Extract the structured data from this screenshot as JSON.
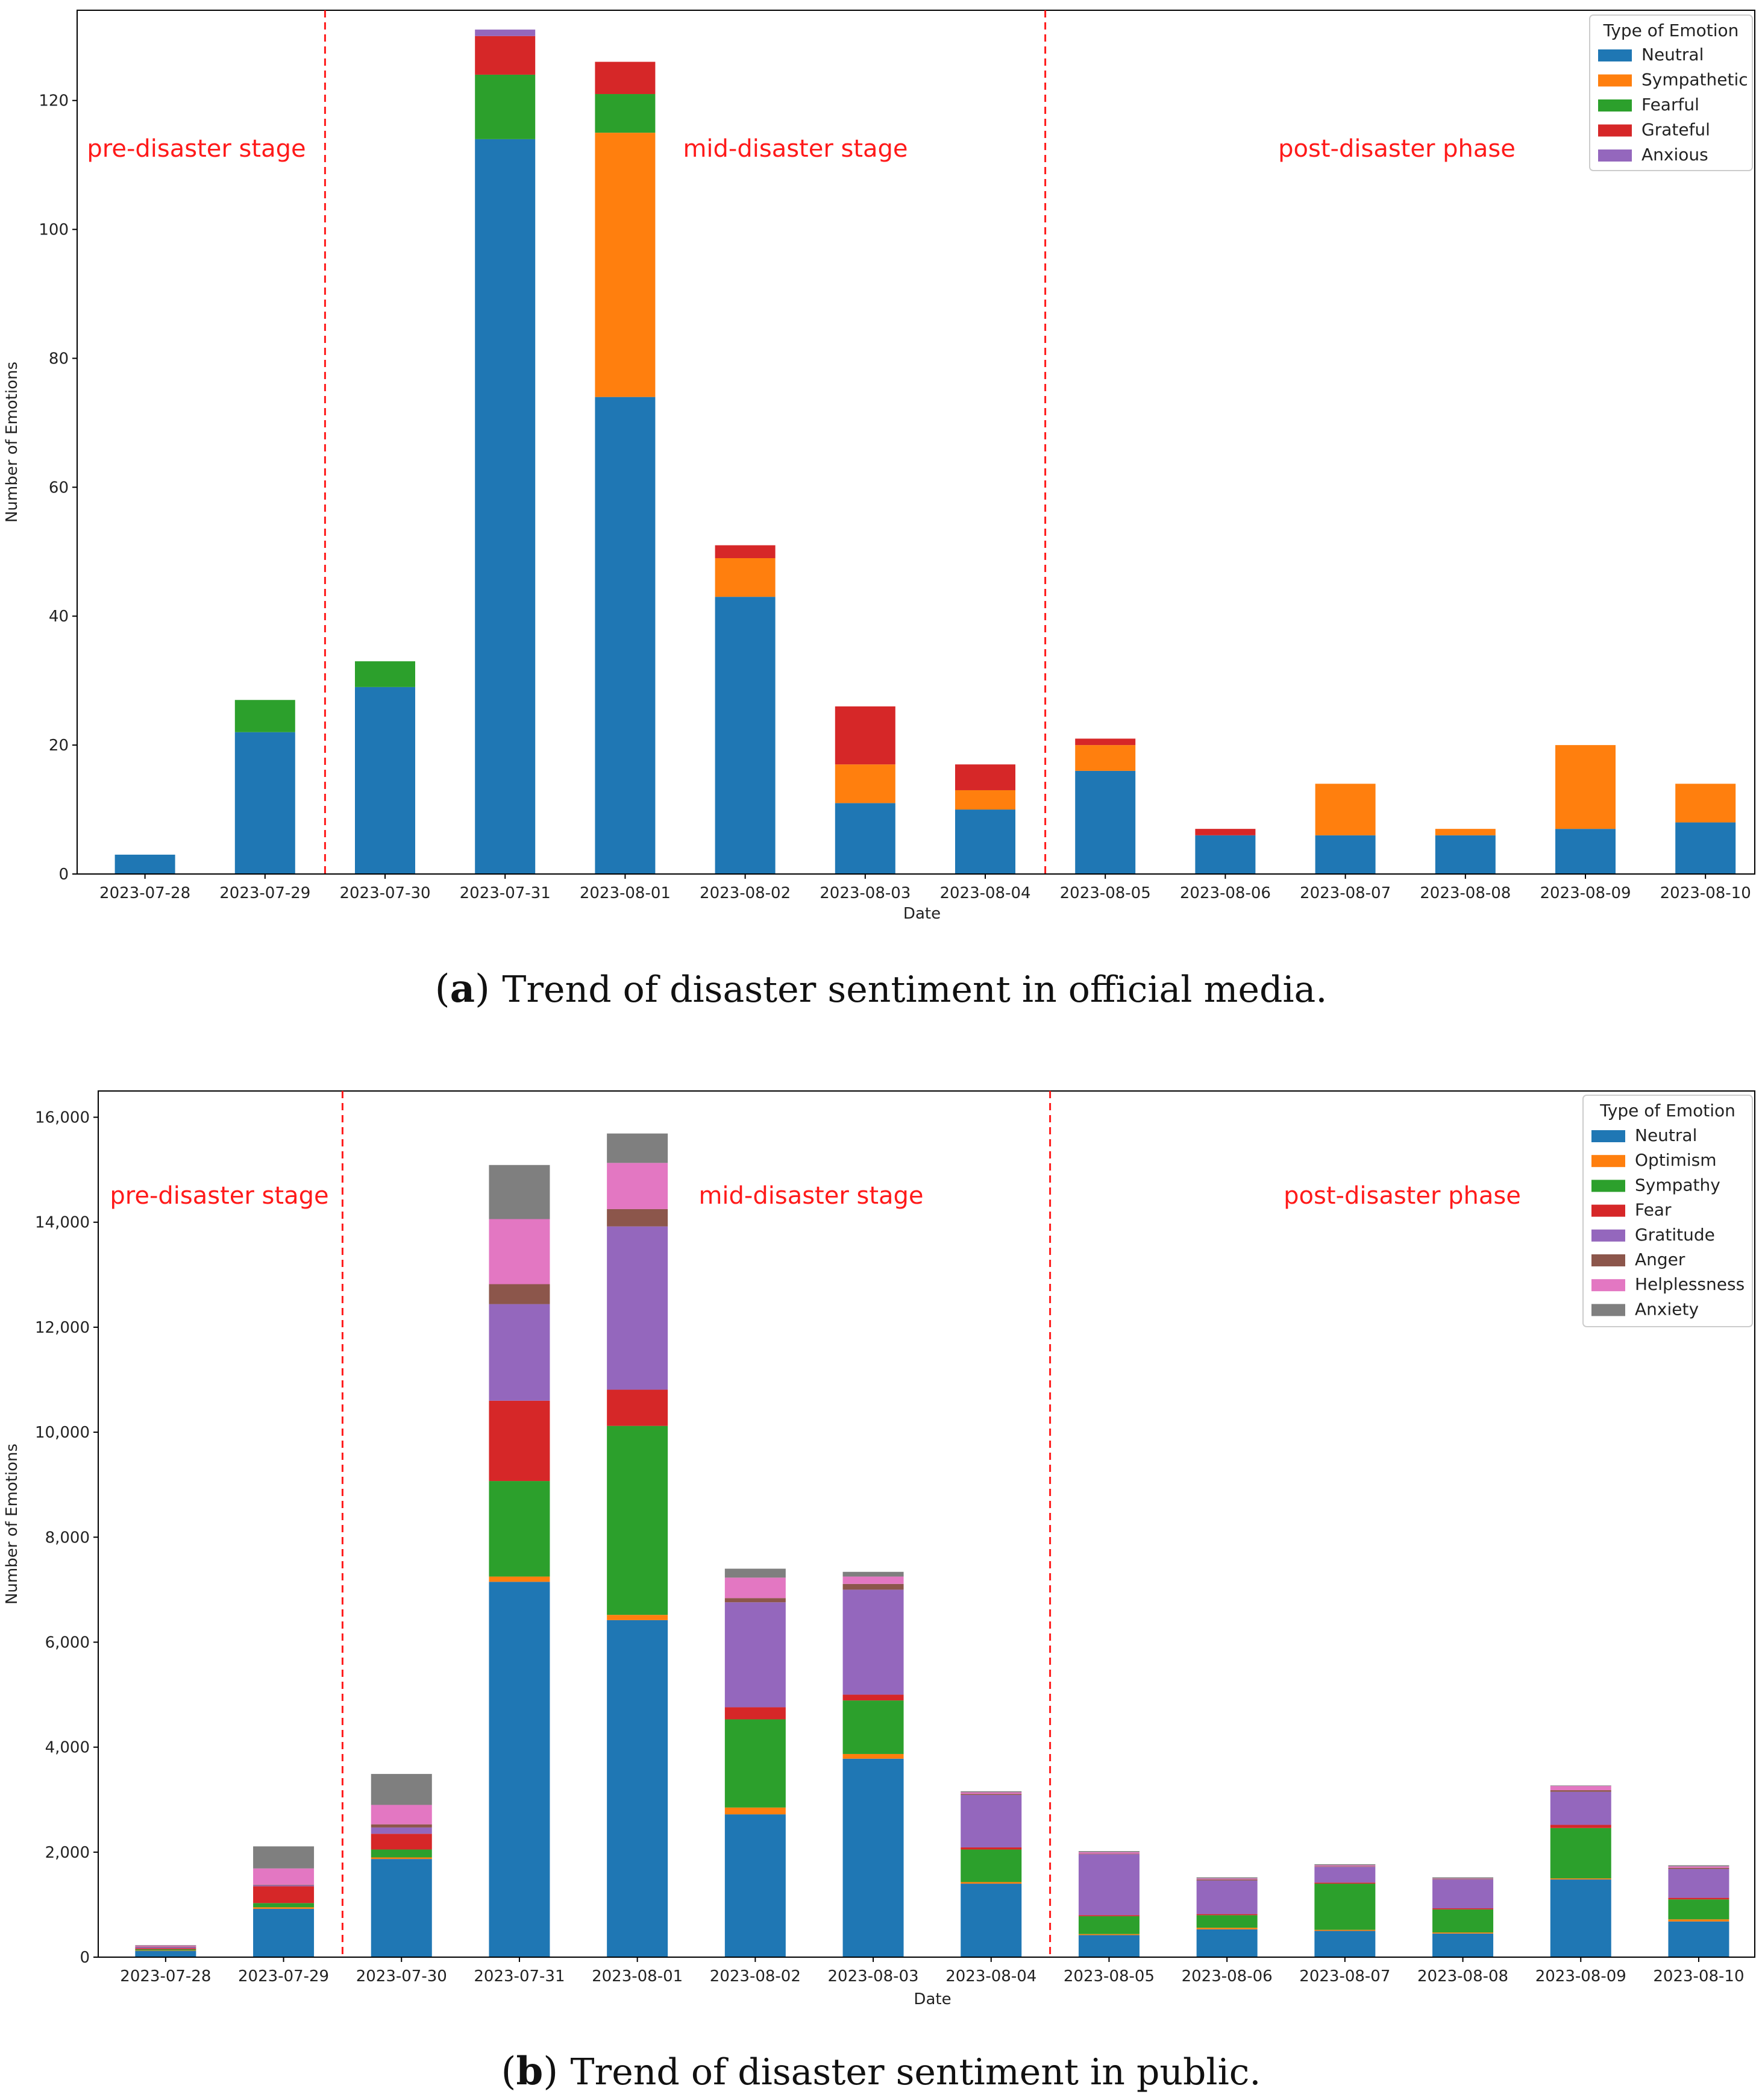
{
  "chart_data": [
    {
      "type": "bar",
      "stacked": true,
      "caption_tag": "a",
      "caption_text": "Trend of disaster sentiment in official media.",
      "xlabel": "Date",
      "ylabel": "Number of Emotions",
      "ylim": [
        0,
        134
      ],
      "yticks": [
        0,
        20,
        40,
        60,
        80,
        100,
        120
      ],
      "ytick_labels": [
        "0",
        "20",
        "40",
        "60",
        "80",
        "100",
        "120"
      ],
      "legend_title": "Type of Emotion",
      "legend_position": "top-right",
      "categories": [
        "2023-07-28",
        "2023-07-29",
        "2023-07-30",
        "2023-07-31",
        "2023-08-01",
        "2023-08-02",
        "2023-08-03",
        "2023-08-04",
        "2023-08-05",
        "2023-08-06",
        "2023-08-07",
        "2023-08-08",
        "2023-08-09",
        "2023-08-10"
      ],
      "series": [
        {
          "name": "Neutral",
          "color": "#1f77b4",
          "values": [
            3,
            22,
            29,
            114,
            74,
            43,
            11,
            10,
            16,
            6,
            6,
            6,
            7,
            8
          ]
        },
        {
          "name": "Sympathetic",
          "color": "#ff7f0e",
          "values": [
            0,
            0,
            0,
            0,
            41,
            6,
            6,
            3,
            4,
            0,
            8,
            1,
            13,
            6
          ]
        },
        {
          "name": "Fearful",
          "color": "#2ca02c",
          "values": [
            0,
            5,
            4,
            10,
            6,
            0,
            0,
            0,
            0,
            0,
            0,
            0,
            0,
            0
          ]
        },
        {
          "name": "Grateful",
          "color": "#d62728",
          "values": [
            0,
            0,
            0,
            6,
            5,
            2,
            9,
            4,
            1,
            1,
            0,
            0,
            0,
            0
          ]
        },
        {
          "name": "Anxious",
          "color": "#9467bd",
          "values": [
            0,
            0,
            0,
            1,
            0,
            0,
            0,
            0,
            0,
            0,
            0,
            0,
            0,
            0
          ]
        }
      ],
      "dividers_after_index": [
        1,
        7
      ],
      "stage_labels": [
        "pre-disaster stage",
        "mid-disaster stage",
        "post-disaster phase"
      ]
    },
    {
      "type": "bar",
      "stacked": true,
      "caption_tag": "b",
      "caption_text": "Trend of disaster sentiment in public.",
      "xlabel": "Date",
      "ylabel": "Number of Emotions",
      "ylim": [
        0,
        16500
      ],
      "yticks": [
        0,
        2000,
        4000,
        6000,
        8000,
        10000,
        12000,
        14000,
        16000
      ],
      "ytick_labels": [
        "0",
        "2,000",
        "4,000",
        "6,000",
        "8,000",
        "10,000",
        "12,000",
        "14,000",
        "16,000"
      ],
      "legend_title": "Type of Emotion",
      "legend_position": "top-right",
      "categories": [
        "2023-07-28",
        "2023-07-29",
        "2023-07-30",
        "2023-07-31",
        "2023-08-01",
        "2023-08-02",
        "2023-08-03",
        "2023-08-04",
        "2023-08-05",
        "2023-08-06",
        "2023-08-07",
        "2023-08-08",
        "2023-08-09",
        "2023-08-10"
      ],
      "series": [
        {
          "name": "Neutral",
          "color": "#1f77b4",
          "values": [
            120,
            920,
            1870,
            7150,
            6420,
            2720,
            3780,
            1400,
            420,
            530,
            500,
            450,
            1480,
            680
          ]
        },
        {
          "name": "Optimism",
          "color": "#ff7f0e",
          "values": [
            10,
            30,
            30,
            100,
            100,
            130,
            90,
            30,
            20,
            30,
            20,
            20,
            20,
            40
          ]
        },
        {
          "name": "Sympathy",
          "color": "#2ca02c",
          "values": [
            20,
            80,
            150,
            1820,
            3600,
            1680,
            1020,
            620,
            340,
            240,
            880,
            440,
            960,
            380
          ]
        },
        {
          "name": "Fear",
          "color": "#d62728",
          "values": [
            20,
            320,
            300,
            1530,
            690,
            230,
            110,
            40,
            20,
            20,
            20,
            20,
            60,
            30
          ]
        },
        {
          "name": "Gratitude",
          "color": "#9467bd",
          "values": [
            20,
            20,
            120,
            1840,
            3110,
            2000,
            2000,
            1000,
            1160,
            640,
            300,
            550,
            630,
            550
          ]
        },
        {
          "name": "Anger",
          "color": "#8c564b",
          "values": [
            10,
            10,
            60,
            380,
            330,
            80,
            110,
            20,
            10,
            20,
            10,
            10,
            30,
            20
          ]
        },
        {
          "name": "Helplessness",
          "color": "#e377c2",
          "values": [
            20,
            310,
            370,
            1240,
            880,
            390,
            140,
            30,
            30,
            20,
            20,
            10,
            80,
            30
          ]
        },
        {
          "name": "Anxiety",
          "color": "#7f7f7f",
          "values": [
            10,
            420,
            590,
            1030,
            560,
            170,
            90,
            20,
            20,
            20,
            20,
            20,
            10,
            20
          ]
        }
      ],
      "dividers_after_index": [
        1,
        7
      ],
      "stage_labels": [
        "pre-disaster stage",
        "mid-disaster stage",
        "post-disaster phase"
      ]
    }
  ]
}
